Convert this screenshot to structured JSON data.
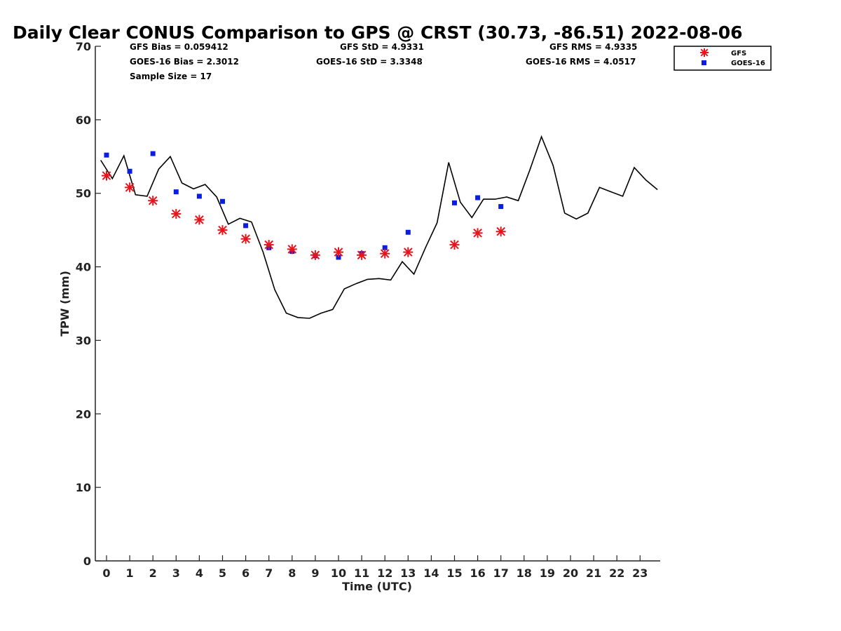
{
  "chart_data": {
    "type": "scatter",
    "title": "Daily Clear CONUS Comparison to GPS @ CRST (30.73, -86.51) 2022-08-06",
    "xlabel": "Time (UTC)",
    "ylabel": "TPW (mm)",
    "xlim": [
      -0.5,
      23.8
    ],
    "ylim": [
      0,
      70
    ],
    "xticks": [
      0,
      1,
      2,
      3,
      4,
      5,
      6,
      7,
      8,
      9,
      10,
      11,
      12,
      13,
      14,
      15,
      16,
      17,
      18,
      19,
      20,
      21,
      22,
      23
    ],
    "yticks": [
      0,
      10,
      20,
      30,
      40,
      50,
      60,
      70
    ],
    "grid": false,
    "legend_position": "top-right",
    "stats": {
      "gfs_bias": "GFS Bias = 0.059412",
      "goes_bias": "GOES-16 Bias = 2.3012",
      "sample_size": "Sample Size = 17",
      "gfs_std": "GFS StD = 4.9331",
      "goes_std": "GOES-16 StD = 3.3348",
      "gfs_rms": "GFS RMS = 4.9335",
      "goes_rms": "GOES-16 RMS = 4.0517"
    },
    "series": [
      {
        "name": "GPS",
        "kind": "line",
        "color": "#000000",
        "x": [
          -0.25,
          0.25,
          0.75,
          1.25,
          1.75,
          2.25,
          2.75,
          3.25,
          3.75,
          4.25,
          4.75,
          5.25,
          5.75,
          6.25,
          6.75,
          7.25,
          7.75,
          8.25,
          8.75,
          9.25,
          9.75,
          10.25,
          10.75,
          11.25,
          11.75,
          12.25,
          12.75,
          13.25,
          13.75,
          14.25,
          14.75,
          15.25,
          15.75,
          16.25,
          16.75,
          17.25,
          17.75,
          18.25,
          18.75,
          19.25,
          19.75,
          20.25,
          20.75,
          21.25,
          21.75,
          22.25,
          22.75,
          23.25,
          23.75
        ],
        "values": [
          54.5,
          52.0,
          55.1,
          49.8,
          49.6,
          53.3,
          55.0,
          51.4,
          50.6,
          51.2,
          49.5,
          45.8,
          46.6,
          46.1,
          42.0,
          36.9,
          33.7,
          33.1,
          33.0,
          33.7,
          34.2,
          37.0,
          37.7,
          38.3,
          38.4,
          38.2,
          40.7,
          39.0,
          42.6,
          46.0,
          54.2,
          48.8,
          46.7,
          49.2,
          49.2,
          49.5,
          49.0,
          53.2,
          57.7,
          53.8,
          47.3,
          46.5,
          47.3,
          50.8,
          50.2,
          49.6,
          53.5,
          51.8,
          50.5
        ]
      },
      {
        "name": "GFS",
        "kind": "marker",
        "marker": "asterisk",
        "color": "#e8141c",
        "x": [
          0,
          1,
          2,
          3,
          4,
          5,
          6,
          7,
          8,
          9,
          10,
          11,
          12,
          13,
          15,
          16,
          17
        ],
        "values": [
          52.4,
          50.8,
          49.0,
          47.2,
          46.4,
          45.0,
          43.8,
          43.0,
          42.4,
          41.6,
          42.0,
          41.6,
          41.8,
          42.0,
          43.0,
          44.6,
          44.8
        ]
      },
      {
        "name": "GOES-16",
        "kind": "marker",
        "marker": "square",
        "color": "#0a1ee0",
        "x": [
          0,
          1,
          2,
          3,
          4,
          5,
          6,
          7,
          8,
          9,
          10,
          11,
          12,
          13,
          15,
          16,
          17
        ],
        "values": [
          55.2,
          53.0,
          55.4,
          50.2,
          49.6,
          48.9,
          45.6,
          42.6,
          42.1,
          41.5,
          41.3,
          41.8,
          42.6,
          44.7,
          48.7,
          49.4,
          48.2
        ]
      }
    ]
  }
}
